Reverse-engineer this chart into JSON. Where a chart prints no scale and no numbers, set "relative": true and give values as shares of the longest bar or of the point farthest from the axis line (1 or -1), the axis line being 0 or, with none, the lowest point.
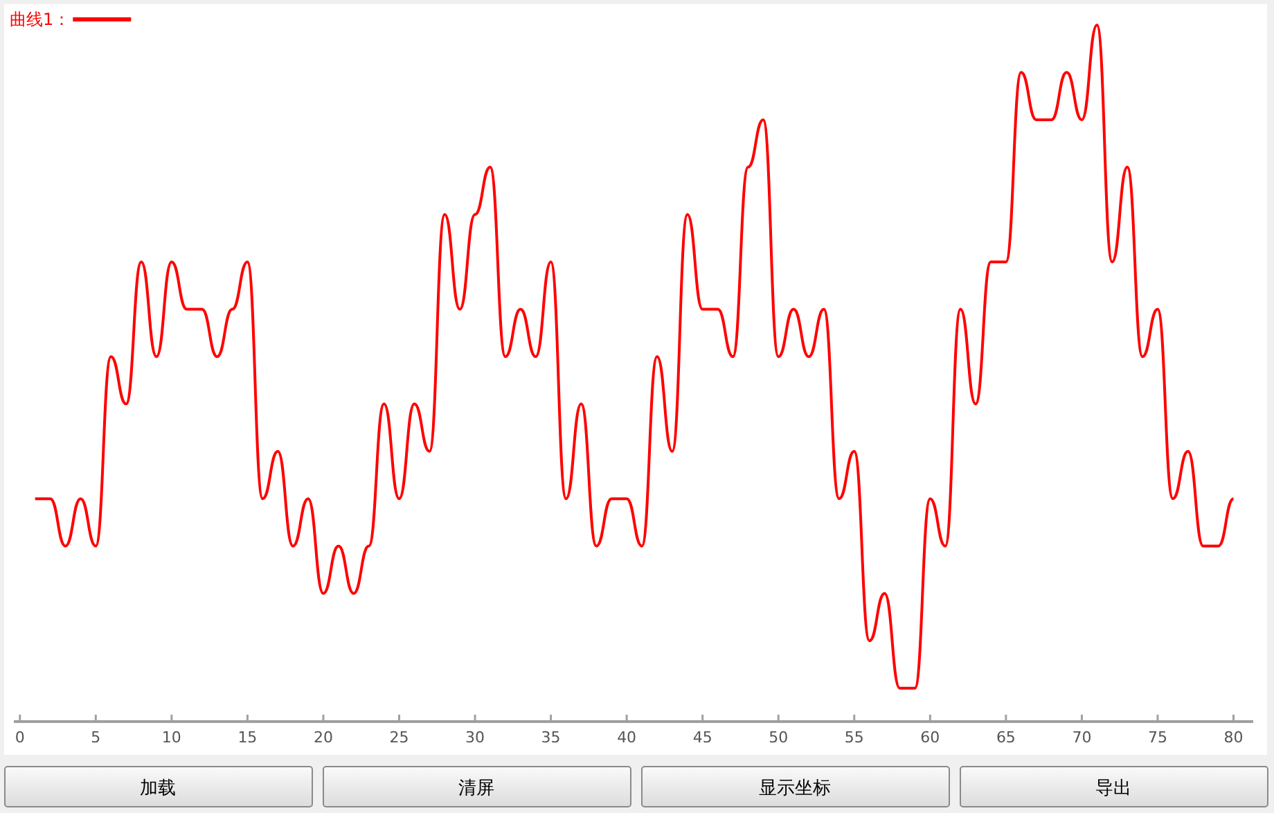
{
  "chart_data": {
    "type": "line",
    "relative": true,
    "x": [
      1,
      2,
      3,
      4,
      5,
      6,
      7,
      8,
      9,
      10,
      11,
      12,
      13,
      14,
      15,
      16,
      17,
      18,
      19,
      20,
      21,
      22,
      23,
      24,
      25,
      26,
      27,
      28,
      29,
      30,
      31,
      32,
      33,
      34,
      35,
      36,
      37,
      38,
      39,
      40,
      41,
      42,
      43,
      44,
      45,
      46,
      47,
      48,
      49,
      50,
      51,
      52,
      53,
      54,
      55,
      56,
      57,
      58,
      59,
      60,
      61,
      62,
      63,
      64,
      65,
      66,
      67,
      68,
      69,
      70,
      71,
      72,
      73,
      74,
      75,
      76,
      77,
      78,
      79,
      80
    ],
    "series": [
      {
        "name": "曲线1：",
        "color": "#ff0000",
        "values": [
          0.32,
          0.32,
          0.252,
          0.32,
          0.252,
          0.524,
          0.456,
          0.66,
          0.524,
          0.66,
          0.592,
          0.592,
          0.524,
          0.592,
          0.66,
          0.32,
          0.388,
          0.252,
          0.32,
          0.184,
          0.252,
          0.184,
          0.252,
          0.456,
          0.32,
          0.456,
          0.388,
          0.728,
          0.592,
          0.728,
          0.796,
          0.524,
          0.592,
          0.524,
          0.66,
          0.32,
          0.456,
          0.252,
          0.32,
          0.32,
          0.252,
          0.524,
          0.388,
          0.728,
          0.592,
          0.592,
          0.524,
          0.796,
          0.864,
          0.524,
          0.592,
          0.524,
          0.592,
          0.32,
          0.388,
          0.116,
          0.184,
          0.048,
          0.048,
          0.32,
          0.252,
          0.592,
          0.456,
          0.66,
          0.66,
          0.932,
          0.864,
          0.864,
          0.932,
          0.864,
          1.0,
          0.66,
          0.796,
          0.524,
          0.592,
          0.32,
          0.388,
          0.252,
          0.252,
          0.32
        ]
      }
    ],
    "xlim": [
      -0.4,
      81.3
    ],
    "xticks": [
      0,
      5,
      10,
      15,
      20,
      25,
      30,
      35,
      40,
      45,
      50,
      55,
      60,
      65,
      70,
      75,
      80
    ],
    "tick_labels": "x",
    "legend": "top left",
    "annotations": [
      "加载",
      "清屏",
      "显示坐标",
      "导出"
    ]
  }
}
